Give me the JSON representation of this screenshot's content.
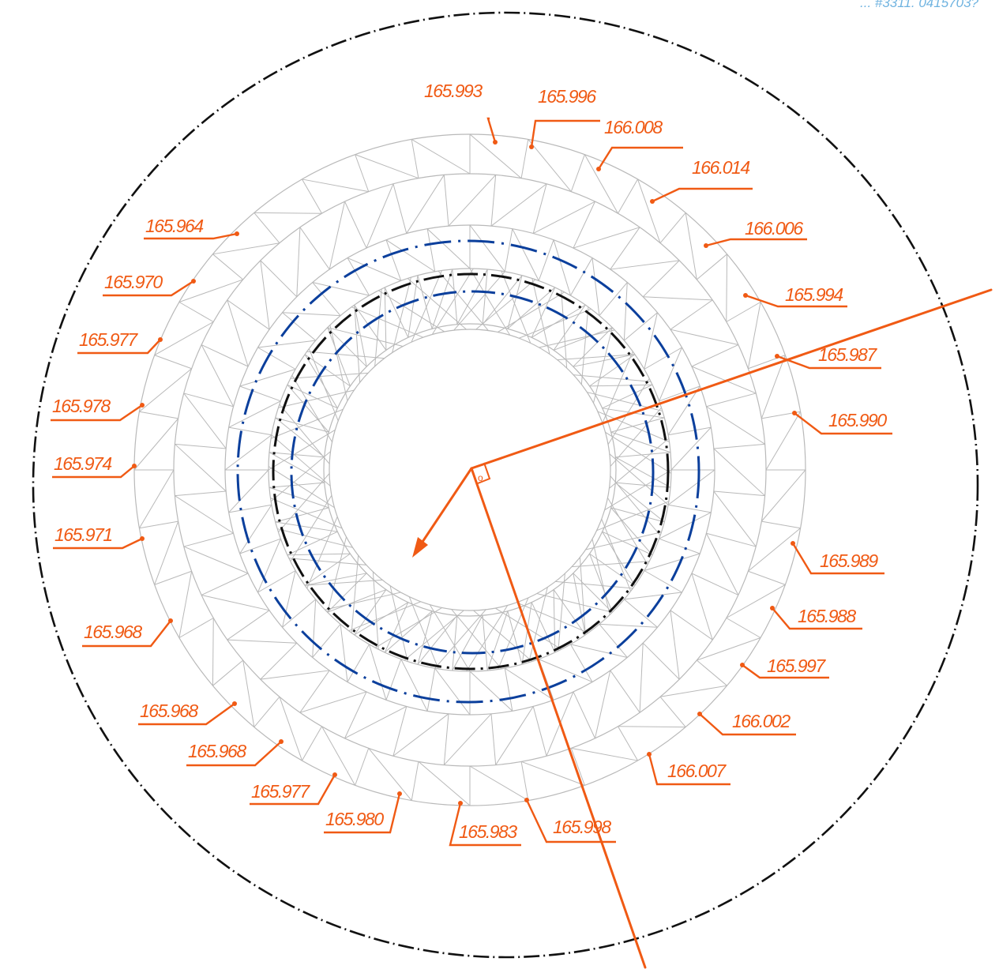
{
  "colors": {
    "background": "#ffffff",
    "outline": "#111111",
    "mesh": "#b9b9b9",
    "reference": "#0b3f9c",
    "annotation": "#f05a14",
    "watermark": "#6fb3e0"
  },
  "watermark_text": "... #3311. 0415703?",
  "measurements": [
    {
      "value": "165.993"
    },
    {
      "value": "165.996"
    },
    {
      "value": "166.008"
    },
    {
      "value": "166.014"
    },
    {
      "value": "166.006"
    },
    {
      "value": "165.994"
    },
    {
      "value": "165.987"
    },
    {
      "value": "165.990"
    },
    {
      "value": "165.989"
    },
    {
      "value": "165.988"
    },
    {
      "value": "165.997"
    },
    {
      "value": "166.002"
    },
    {
      "value": "166.007"
    },
    {
      "value": "165.998"
    },
    {
      "value": "165.983"
    },
    {
      "value": "165.980"
    },
    {
      "value": "165.977"
    },
    {
      "value": "165.968"
    },
    {
      "value": "165.968"
    },
    {
      "value": "165.968"
    },
    {
      "value": "165.971"
    },
    {
      "value": "165.974"
    },
    {
      "value": "165.978"
    },
    {
      "value": "165.977"
    },
    {
      "value": "165.970"
    },
    {
      "value": "165.964"
    }
  ],
  "center_glyph": "o"
}
